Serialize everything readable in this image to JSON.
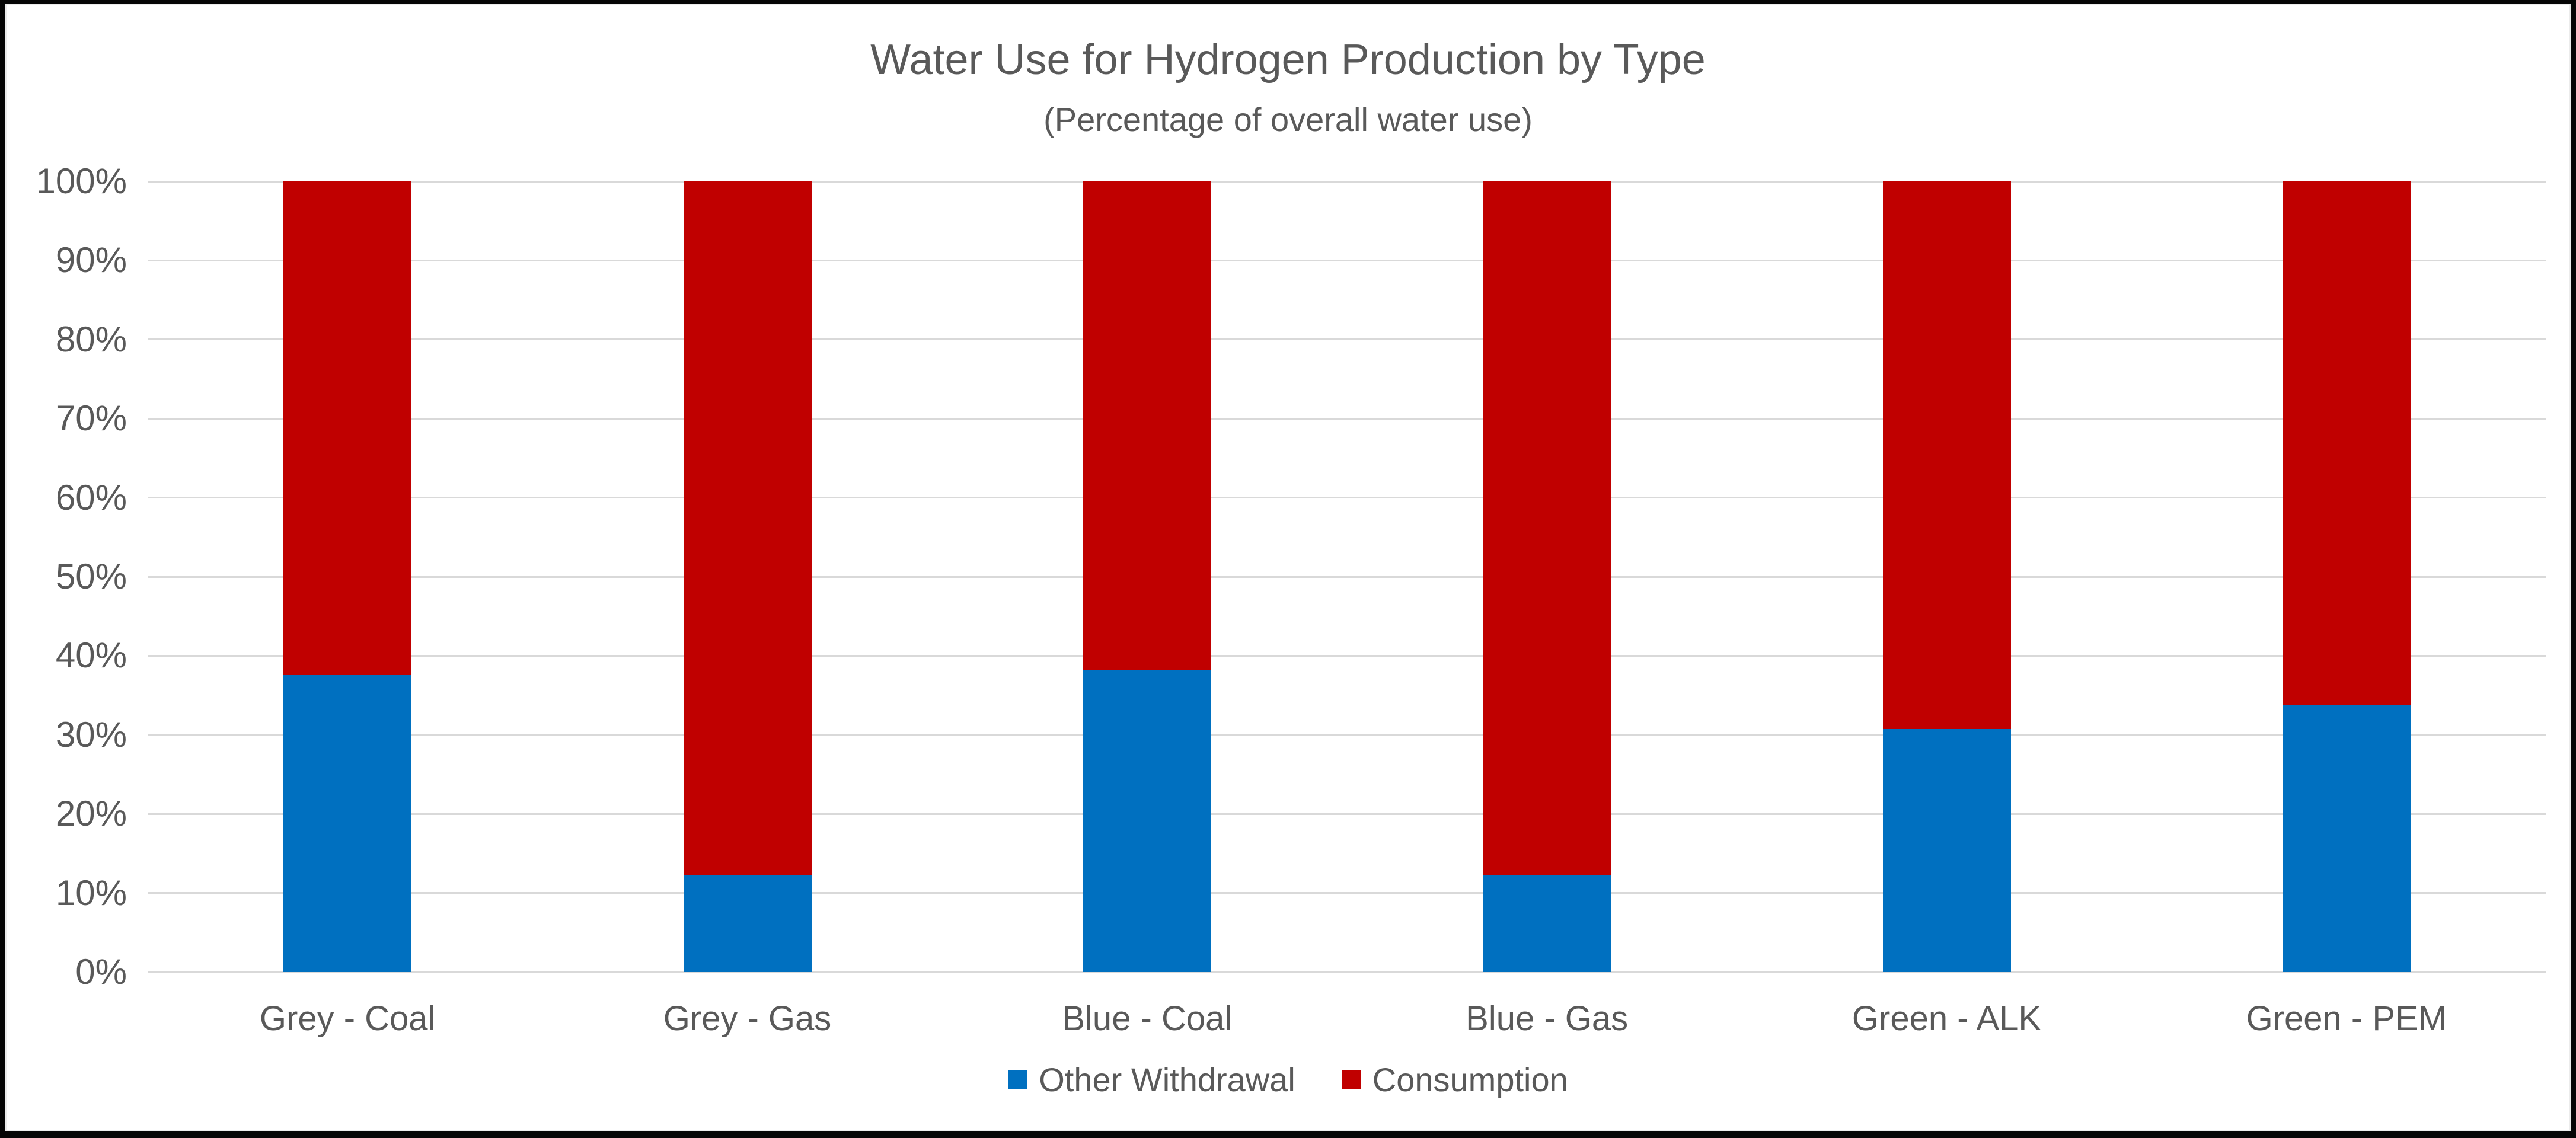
{
  "chart_data": {
    "type": "bar",
    "variant": "stacked-100-percent-column",
    "title": "Water Use for Hydrogen Production by Type",
    "subtitle": "(Percentage of overall water use)",
    "xlabel": "",
    "ylabel": "",
    "categories": [
      "Grey - Coal",
      "Grey - Gas",
      "Blue - Coal",
      "Blue - Gas",
      "Green - ALK",
      "Green - PEM"
    ],
    "series": [
      {
        "name": "Other Withdrawal",
        "color": "#0070C0",
        "values": [
          37.6,
          12.3,
          38.2,
          12.3,
          30.7,
          33.7
        ]
      },
      {
        "name": "Consumption",
        "color": "#C00000",
        "values": [
          62.4,
          87.7,
          61.8,
          87.7,
          69.3,
          66.3
        ]
      }
    ],
    "y_axis": {
      "min": 0,
      "max": 100,
      "step": 10,
      "tick_labels": [
        "0%",
        "10%",
        "20%",
        "30%",
        "40%",
        "50%",
        "60%",
        "70%",
        "80%",
        "90%",
        "100%"
      ]
    },
    "ylim": [
      0,
      100
    ],
    "grid": true,
    "legend_position": "bottom",
    "colors": {
      "withdrawal_blue": "#0070C0",
      "consumption_red": "#C00000",
      "text_grey": "#595959",
      "gridline_grey": "#D9D9D9",
      "frame_black": "#050505",
      "background": "#FFFFFF"
    }
  }
}
